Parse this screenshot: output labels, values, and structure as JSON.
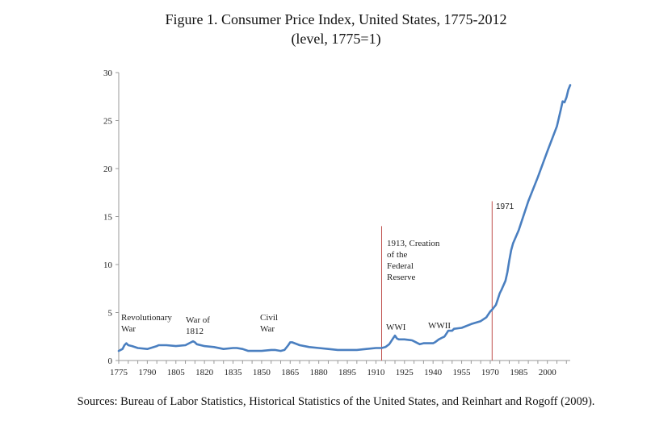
{
  "header": {
    "title": "Figure 1. Consumer Price Index, United States, 1775-2012",
    "subtitle": "(level, 1775=1)"
  },
  "footer": {
    "source": "Sources: Bureau of Labor Statistics, Historical Statistics of the United States, and Reinhart and Rogoff (2009)."
  },
  "colors": {
    "line": "#4a7fc0",
    "marker": "#c0504d",
    "axis": "#999999"
  },
  "chart_data": {
    "type": "line",
    "title": "Figure 1. Consumer Price Index, United States, 1775-2012",
    "subtitle": "(level, 1775=1)",
    "xlabel": "",
    "ylabel": "",
    "xlim": [
      1775,
      2012
    ],
    "ylim": [
      0,
      30
    ],
    "yticks": [
      0,
      5,
      10,
      15,
      20,
      25,
      30
    ],
    "xticks": [
      1775,
      1790,
      1805,
      1820,
      1835,
      1850,
      1865,
      1880,
      1895,
      1910,
      1925,
      1940,
      1955,
      1970,
      1985,
      2000
    ],
    "grid": false,
    "legend": "none",
    "series": [
      {
        "x": [
          1775,
          1777,
          1778,
          1779,
          1780,
          1782,
          1785,
          1790,
          1795,
          1796,
          1800,
          1805,
          1810,
          1813,
          1814,
          1815,
          1816,
          1820,
          1825,
          1830,
          1835,
          1837,
          1840,
          1843,
          1845,
          1850,
          1855,
          1857,
          1860,
          1862,
          1864,
          1865,
          1866,
          1870,
          1875,
          1880,
          1885,
          1890,
          1895,
          1900,
          1905,
          1910,
          1913,
          1915,
          1917,
          1918,
          1919,
          1920,
          1921,
          1922,
          1925,
          1929,
          1930,
          1933,
          1935,
          1940,
          1941,
          1943,
          1945,
          1946,
          1947,
          1948,
          1950,
          1951,
          1955,
          1960,
          1965,
          1968,
          1970,
          1971,
          1973,
          1974,
          1975,
          1976,
          1978,
          1979,
          1980,
          1981,
          1982,
          1985,
          1990,
          1995,
          2000,
          2005,
          2007,
          2008,
          2009,
          2010,
          2011,
          2012
        ],
        "y": [
          1.0,
          1.2,
          1.6,
          1.8,
          1.6,
          1.5,
          1.3,
          1.2,
          1.5,
          1.6,
          1.6,
          1.5,
          1.6,
          1.9,
          2.0,
          1.9,
          1.7,
          1.5,
          1.4,
          1.2,
          1.3,
          1.3,
          1.2,
          1.0,
          1.0,
          1.0,
          1.1,
          1.1,
          1.0,
          1.1,
          1.6,
          1.9,
          1.9,
          1.6,
          1.4,
          1.3,
          1.2,
          1.1,
          1.1,
          1.1,
          1.2,
          1.3,
          1.3,
          1.4,
          1.7,
          2.0,
          2.3,
          2.6,
          2.3,
          2.2,
          2.2,
          2.1,
          2.0,
          1.7,
          1.8,
          1.8,
          1.9,
          2.2,
          2.4,
          2.5,
          2.8,
          3.1,
          3.1,
          3.3,
          3.4,
          3.8,
          4.1,
          4.5,
          5.1,
          5.3,
          5.8,
          6.4,
          7.0,
          7.4,
          8.3,
          9.2,
          10.4,
          11.5,
          12.2,
          13.6,
          16.6,
          19.1,
          21.8,
          24.4,
          26.1,
          27.0,
          26.9,
          27.4,
          28.2,
          28.7
        ]
      }
    ],
    "annotations": [
      {
        "id": "revolutionary",
        "lines": [
          "Revolutionary",
          "War"
        ]
      },
      {
        "id": "war1812",
        "lines": [
          "War of",
          "1812"
        ]
      },
      {
        "id": "civil",
        "lines": [
          "Civil",
          "War"
        ]
      },
      {
        "id": "wwi",
        "lines": [
          "WWI"
        ]
      },
      {
        "id": "wwii",
        "lines": [
          "WWII"
        ]
      },
      {
        "id": "fed",
        "lines": [
          "1913, Creation",
          "of the",
          "Federal",
          "Reserve"
        ]
      },
      {
        "id": "y1971",
        "lines": [
          "1971"
        ]
      }
    ],
    "vertical_markers": [
      {
        "year": 1913,
        "top_value": 14,
        "label_id": "fed"
      },
      {
        "year": 1971,
        "top_value": 16.6,
        "label_id": "y1971"
      }
    ]
  }
}
